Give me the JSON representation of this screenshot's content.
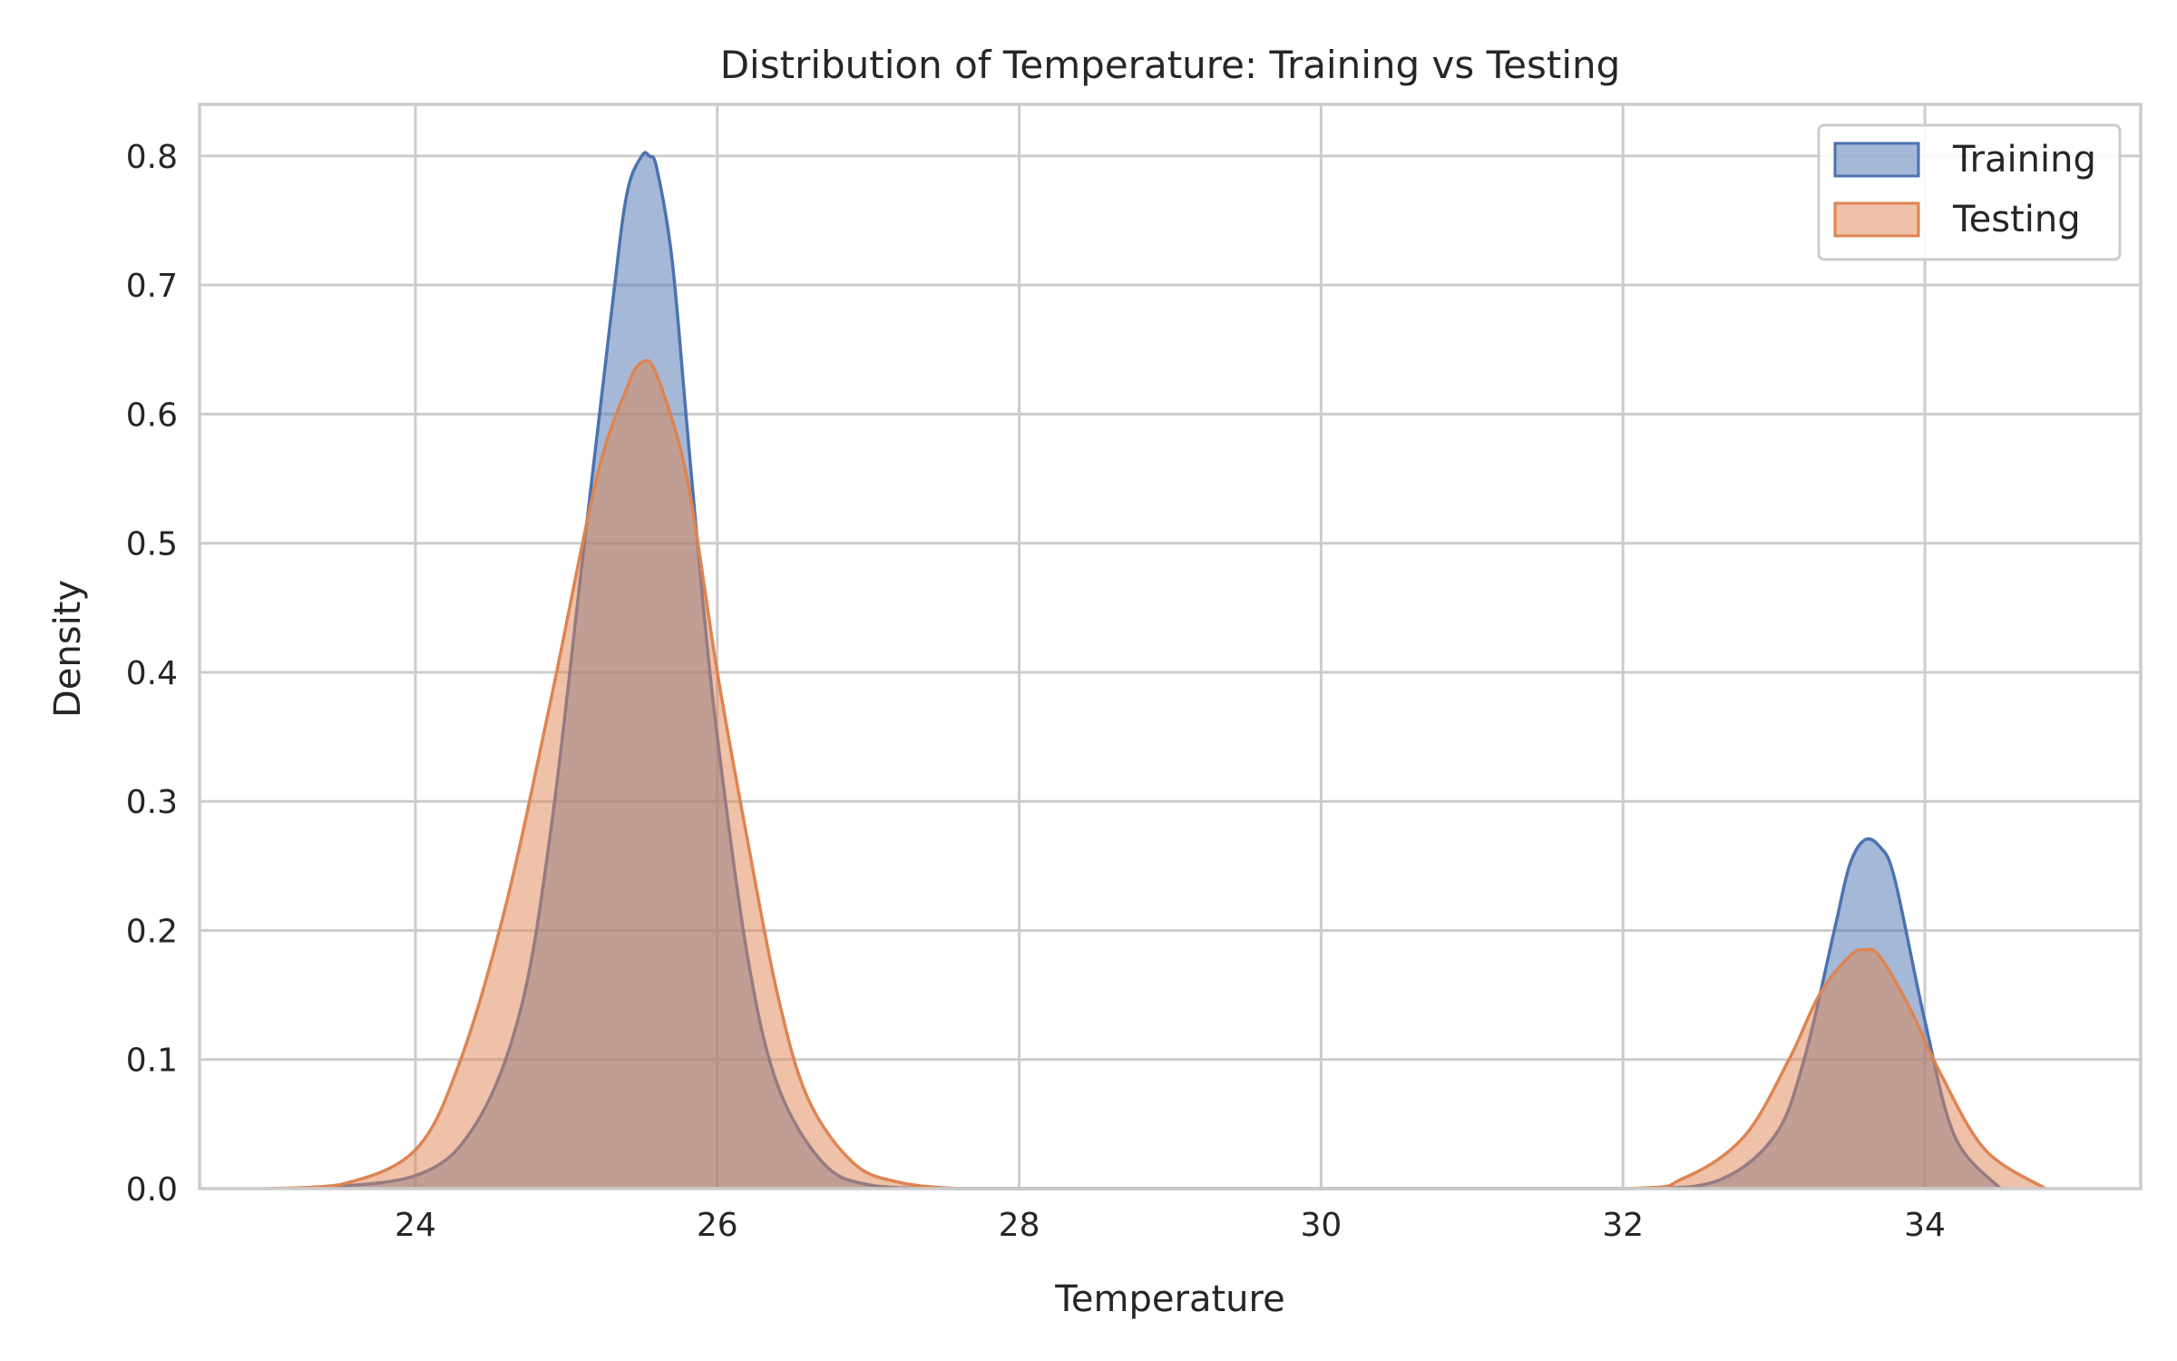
{
  "chart_data": {
    "type": "area",
    "title": "Distribution of Temperature: Training vs Testing",
    "xlabel": "Temperature",
    "ylabel": "Density",
    "xlim": [
      22.57,
      35.43
    ],
    "ylim": [
      0,
      0.84
    ],
    "x_ticks": [
      24,
      26,
      28,
      30,
      32,
      34
    ],
    "y_ticks": [
      0.0,
      0.1,
      0.2,
      0.3,
      0.4,
      0.5,
      0.6,
      0.7,
      0.8
    ],
    "x_tick_labels": [
      "24",
      "26",
      "28",
      "30",
      "32",
      "34"
    ],
    "y_tick_labels": [
      "0.0",
      "0.1",
      "0.2",
      "0.3",
      "0.4",
      "0.5",
      "0.6",
      "0.7",
      "0.8"
    ],
    "grid": true,
    "legend_position": "top-right",
    "series": [
      {
        "name": "Training",
        "color": "#4c72b0",
        "x": [
          23.2,
          24.0,
          24.4,
          24.7,
          24.9,
          25.1,
          25.3,
          25.4,
          25.5,
          25.55,
          25.6,
          25.7,
          25.8,
          25.9,
          26.0,
          26.2,
          26.4,
          26.7,
          27.0,
          27.5,
          28,
          30,
          32,
          32.6,
          33.0,
          33.2,
          33.4,
          33.5,
          33.6,
          33.7,
          33.8,
          34.0,
          34.2,
          34.5
        ],
        "y": [
          0.0,
          0.01,
          0.05,
          0.14,
          0.28,
          0.48,
          0.68,
          0.77,
          0.8,
          0.8,
          0.79,
          0.72,
          0.59,
          0.46,
          0.35,
          0.18,
          0.08,
          0.02,
          0.003,
          0.0,
          0.0,
          0.0,
          0.0,
          0.005,
          0.04,
          0.1,
          0.2,
          0.25,
          0.27,
          0.265,
          0.24,
          0.13,
          0.04,
          0.0
        ]
      },
      {
        "name": "Testing",
        "color": "#dd8452",
        "x": [
          23.0,
          23.5,
          24.0,
          24.3,
          24.6,
          24.9,
          25.2,
          25.4,
          25.5,
          25.6,
          25.8,
          26.0,
          26.2,
          26.4,
          26.6,
          26.9,
          27.2,
          27.6,
          28,
          30,
          32,
          32.4,
          32.8,
          33.1,
          33.3,
          33.5,
          33.6,
          33.7,
          33.9,
          34.1,
          34.4,
          34.8
        ],
        "y": [
          0.0,
          0.003,
          0.03,
          0.1,
          0.22,
          0.38,
          0.55,
          0.62,
          0.64,
          0.63,
          0.55,
          0.4,
          0.27,
          0.15,
          0.07,
          0.02,
          0.005,
          0.0,
          0.0,
          0.0,
          0.0,
          0.008,
          0.04,
          0.1,
          0.15,
          0.18,
          0.185,
          0.18,
          0.14,
          0.09,
          0.03,
          0.0
        ]
      }
    ]
  }
}
